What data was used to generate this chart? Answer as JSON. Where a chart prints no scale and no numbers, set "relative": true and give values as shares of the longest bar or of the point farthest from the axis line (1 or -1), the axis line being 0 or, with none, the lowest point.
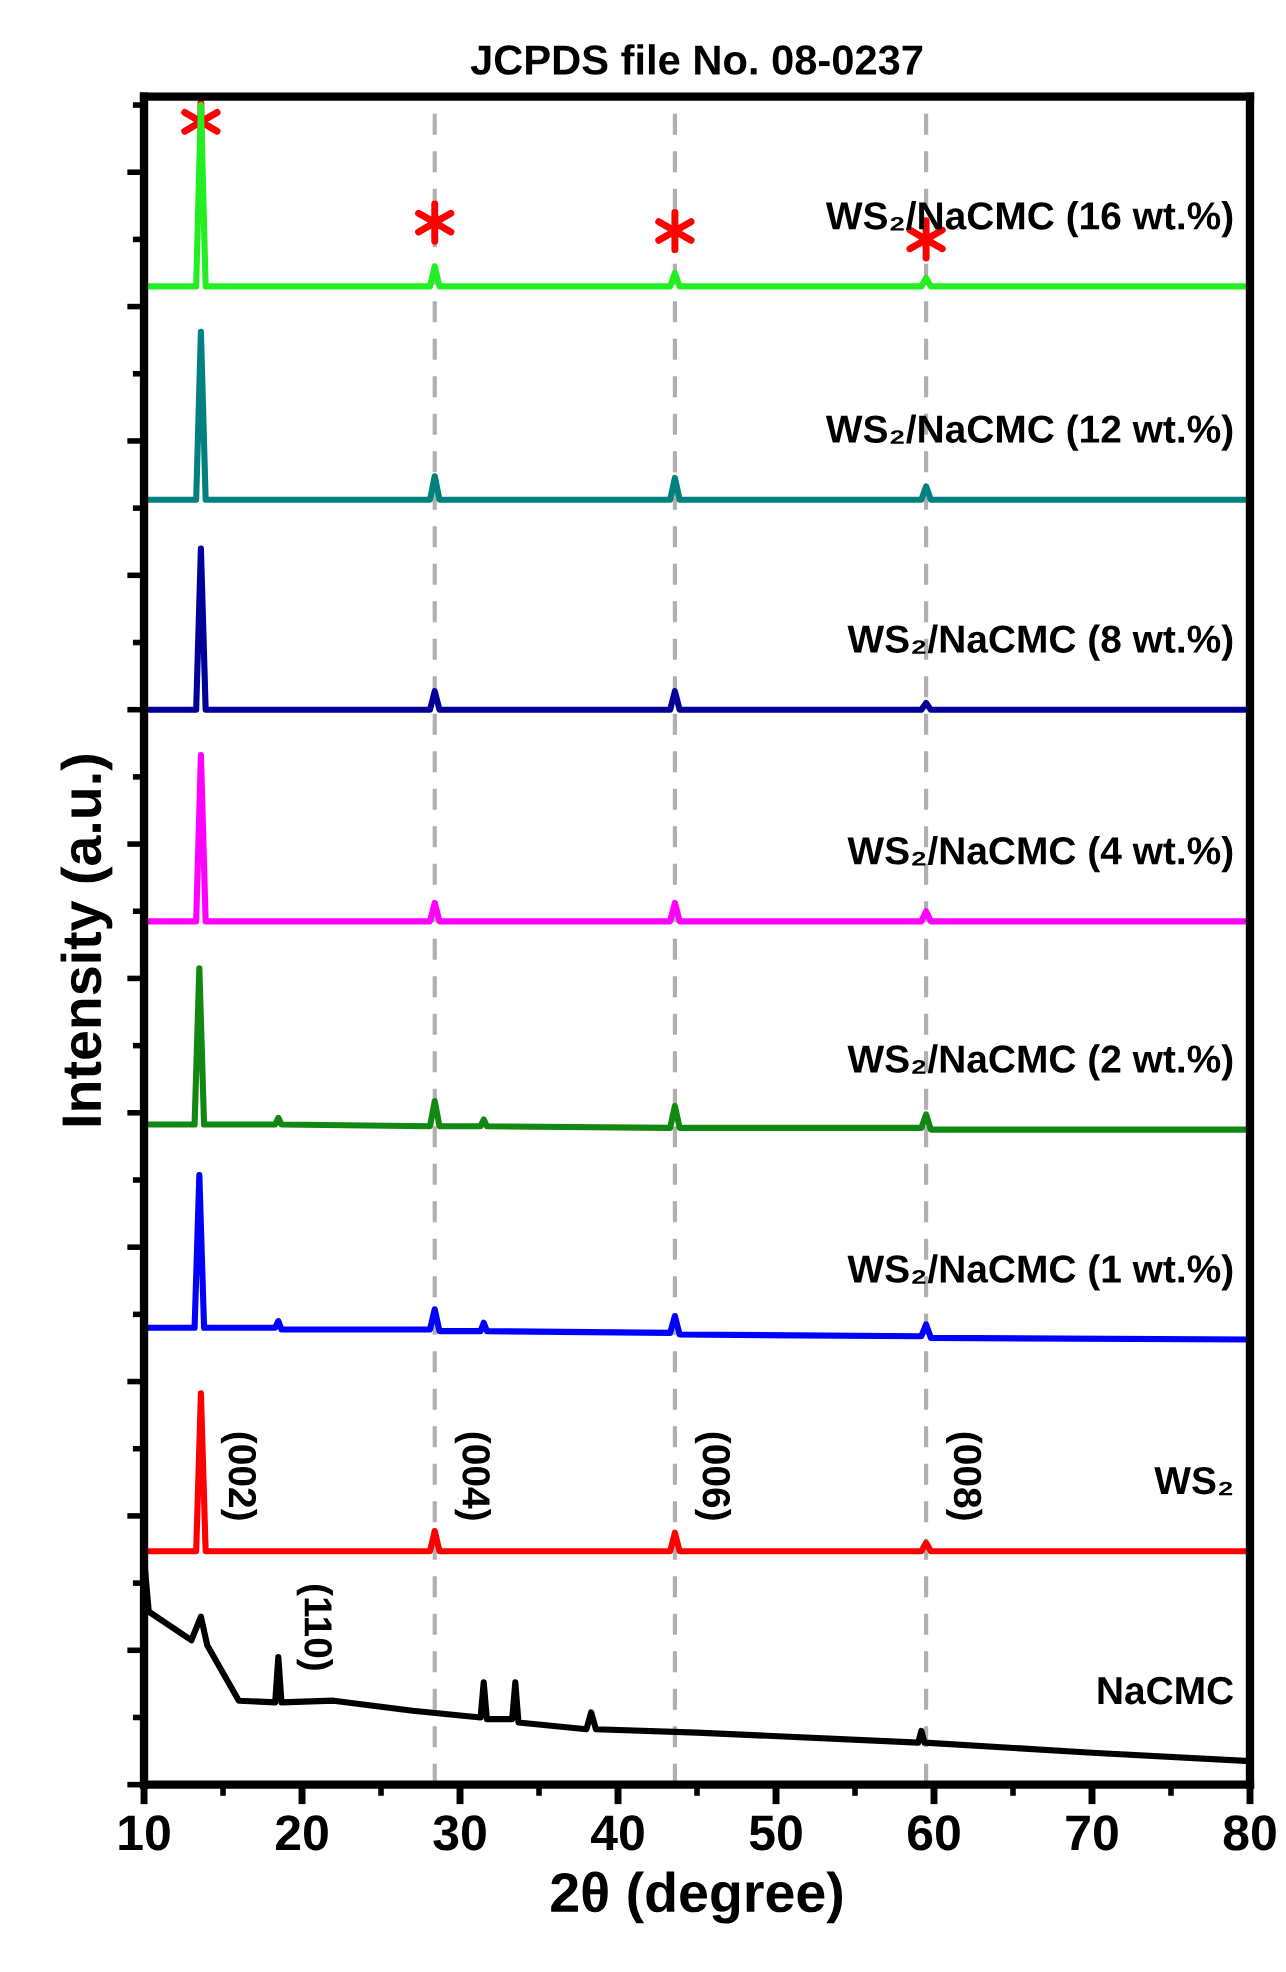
{
  "chart_data": {
    "type": "line",
    "title": "JCPDS file No. 08-0237",
    "xlabel": "2θ (degree)",
    "ylabel": "Intensity (a.u.)",
    "relative": true,
    "xlim": [
      10,
      80
    ],
    "xticks": [
      10,
      20,
      30,
      40,
      50,
      60,
      70,
      80
    ],
    "tick_labels": "x",
    "legend": false,
    "grid": false,
    "series": [
      {
        "name": "WS₂/NaCMC (16 wt.%)",
        "color": "#22ee22",
        "x": [
          10,
          13.3,
          13.6,
          13.9,
          28.1,
          28.4,
          28.7,
          43.3,
          43.6,
          43.9,
          59.2,
          59.5,
          59.8,
          80
        ],
        "values": [
          0.892,
          0.892,
          1.0,
          0.892,
          0.892,
          0.904,
          0.892,
          0.892,
          0.9,
          0.892,
          0.892,
          0.897,
          0.892,
          0.892
        ]
      },
      {
        "name": "WS₂/NaCMC (12 wt.%)",
        "color": "#008080",
        "x": [
          10,
          13.3,
          13.6,
          13.9,
          28.1,
          28.4,
          28.7,
          43.3,
          43.6,
          43.9,
          59.2,
          59.5,
          59.8,
          80
        ],
        "values": [
          0.765,
          0.765,
          0.865,
          0.765,
          0.765,
          0.779,
          0.765,
          0.765,
          0.778,
          0.765,
          0.765,
          0.773,
          0.765,
          0.765
        ]
      },
      {
        "name": "WS₂/NaCMC (8 wt.%)",
        "color": "#000099",
        "x": [
          10,
          13.3,
          13.6,
          13.9,
          28.1,
          28.4,
          28.7,
          43.3,
          43.6,
          43.9,
          59.2,
          59.5,
          59.8,
          80
        ],
        "values": [
          0.64,
          0.64,
          0.736,
          0.64,
          0.64,
          0.651,
          0.64,
          0.64,
          0.651,
          0.64,
          0.64,
          0.644,
          0.64,
          0.64
        ]
      },
      {
        "name": "WS₂/NaCMC (4 wt.%)",
        "color": "#ff00ff",
        "x": [
          10,
          13.3,
          13.6,
          13.9,
          28.1,
          28.4,
          28.7,
          43.3,
          43.6,
          43.9,
          59.2,
          59.5,
          59.8,
          80
        ],
        "values": [
          0.514,
          0.514,
          0.613,
          0.514,
          0.514,
          0.525,
          0.514,
          0.514,
          0.525,
          0.514,
          0.514,
          0.52,
          0.514,
          0.514
        ]
      },
      {
        "name": "WS₂/NaCMC (2 wt.%)",
        "color": "#118811",
        "x": [
          10,
          13.2,
          13.5,
          13.8,
          18.3,
          18.5,
          18.7,
          28.1,
          28.4,
          28.7,
          31.3,
          31.5,
          31.7,
          43.3,
          43.6,
          43.9,
          59.2,
          59.5,
          59.8,
          80
        ],
        "values": [
          0.393,
          0.393,
          0.486,
          0.393,
          0.393,
          0.397,
          0.393,
          0.392,
          0.407,
          0.392,
          0.392,
          0.396,
          0.392,
          0.391,
          0.404,
          0.391,
          0.391,
          0.399,
          0.39,
          0.39
        ]
      },
      {
        "name": "WS₂/NaCMC (1 wt.%)",
        "color": "#0000ff",
        "x": [
          10,
          13.2,
          13.5,
          13.8,
          18.3,
          18.5,
          18.7,
          28.1,
          28.4,
          28.7,
          31.3,
          31.5,
          31.7,
          43.3,
          43.6,
          43.9,
          59.2,
          59.5,
          59.8,
          80
        ],
        "values": [
          0.272,
          0.272,
          0.363,
          0.272,
          0.272,
          0.276,
          0.271,
          0.271,
          0.283,
          0.27,
          0.27,
          0.275,
          0.27,
          0.269,
          0.279,
          0.268,
          0.267,
          0.274,
          0.266,
          0.265
        ]
      },
      {
        "name": "WS₂",
        "color": "#ff0000",
        "x": [
          10,
          13.3,
          13.6,
          13.9,
          28.1,
          28.4,
          28.7,
          43.3,
          43.6,
          43.9,
          59.2,
          59.5,
          59.8,
          80
        ],
        "values": [
          0.139,
          0.139,
          0.233,
          0.139,
          0.139,
          0.151,
          0.139,
          0.139,
          0.15,
          0.139,
          0.139,
          0.144,
          0.139,
          0.139
        ]
      },
      {
        "name": "NaCMC",
        "color": "#000000",
        "x": [
          10,
          10.3,
          13,
          13.6,
          14,
          16,
          18.3,
          18.5,
          18.7,
          22,
          27,
          31.3,
          31.5,
          31.7,
          33.3,
          33.5,
          33.7,
          38,
          38.3,
          38.6,
          45,
          59,
          59.2,
          59.4,
          70,
          80
        ],
        "values": [
          0.135,
          0.103,
          0.086,
          0.1,
          0.083,
          0.05,
          0.049,
          0.076,
          0.049,
          0.05,
          0.044,
          0.04,
          0.061,
          0.039,
          0.039,
          0.061,
          0.037,
          0.033,
          0.043,
          0.033,
          0.031,
          0.025,
          0.032,
          0.025,
          0.019,
          0.014
        ]
      },
      {
        "type": "scatter",
        "marker": "cross",
        "color": "#ff0000",
        "x": [
          13.6,
          28.4,
          43.6,
          59.5
        ],
        "values": [
          0.99,
          0.93,
          0.925,
          0.92
        ]
      }
    ],
    "ref_lines": [
      {
        "axis": "x",
        "value": 28.4,
        "color": "#b0b0b0",
        "line_style": "dashed"
      },
      {
        "axis": "x",
        "value": 43.6,
        "color": "#b0b0b0",
        "line_style": "dashed"
      },
      {
        "axis": "x",
        "value": 59.5,
        "color": "#b0b0b0",
        "line_style": "dashed"
      }
    ],
    "annotations": [
      {
        "text": "(002)",
        "x": 13.9,
        "y": 0.139
      },
      {
        "text": "(004)",
        "x": 28.7,
        "y": 0.139
      },
      {
        "text": "(006)",
        "x": 43.9,
        "y": 0.139
      },
      {
        "text": "(008)",
        "x": 59.8,
        "y": 0.139
      },
      {
        "text": "(110)",
        "x": 18.7,
        "y": 0.049
      }
    ]
  }
}
